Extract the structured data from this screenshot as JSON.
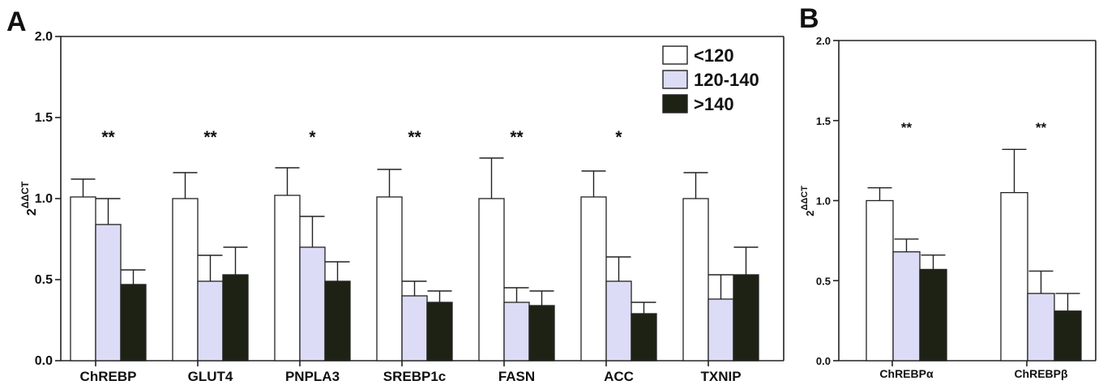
{
  "colors": {
    "<120": "#ffffff",
    "120-140": "#dcdcf6",
    ">140": "#1e2214"
  },
  "chart_data": [
    {
      "panel": "A",
      "type": "bar",
      "ylabel_base": "2",
      "ylabel_sup": "ΔΔCT",
      "ylim": [
        0,
        2.0
      ],
      "yticks": [
        "0.0",
        "0.5",
        "1.0",
        "1.5",
        "2.0"
      ],
      "grid": false,
      "legend_position": "top-right",
      "categories": [
        "ChREBP",
        "GLUT4",
        "PNPLA3",
        "SREBP1c",
        "FASN",
        "ACC",
        "TXNIP"
      ],
      "series": [
        {
          "name": "<120",
          "values": [
            1.01,
            1.0,
            1.02,
            1.01,
            1.0,
            1.01,
            1.0
          ],
          "errors": [
            0.11,
            0.16,
            0.17,
            0.17,
            0.25,
            0.16,
            0.16
          ]
        },
        {
          "name": "120-140",
          "values": [
            0.84,
            0.49,
            0.7,
            0.4,
            0.36,
            0.49,
            0.38
          ],
          "errors": [
            0.16,
            0.16,
            0.19,
            0.09,
            0.09,
            0.15,
            0.15
          ]
        },
        {
          "name": ">140",
          "values": [
            0.47,
            0.53,
            0.49,
            0.36,
            0.34,
            0.29,
            0.53
          ],
          "errors": [
            0.09,
            0.17,
            0.12,
            0.07,
            0.09,
            0.07,
            0.17
          ]
        }
      ],
      "significance": [
        "**",
        "**",
        "*",
        "**",
        "**",
        "*",
        ""
      ]
    },
    {
      "panel": "B",
      "type": "bar",
      "ylabel_base": "2",
      "ylabel_sup": "ΔΔCT",
      "ylim": [
        0,
        2.0
      ],
      "yticks": [
        "0.0",
        "0.5",
        "1.0",
        "1.5",
        "2.0"
      ],
      "grid": false,
      "categories": [
        "ChREBPα",
        "ChREBPβ"
      ],
      "series": [
        {
          "name": "<120",
          "values": [
            1.0,
            1.05
          ],
          "errors": [
            0.08,
            0.27
          ]
        },
        {
          "name": "120-140",
          "values": [
            0.68,
            0.42
          ],
          "errors": [
            0.08,
            0.14
          ]
        },
        {
          "name": ">140",
          "values": [
            0.57,
            0.31
          ],
          "errors": [
            0.09,
            0.11
          ]
        }
      ],
      "significance": [
        "**",
        "**"
      ]
    }
  ]
}
